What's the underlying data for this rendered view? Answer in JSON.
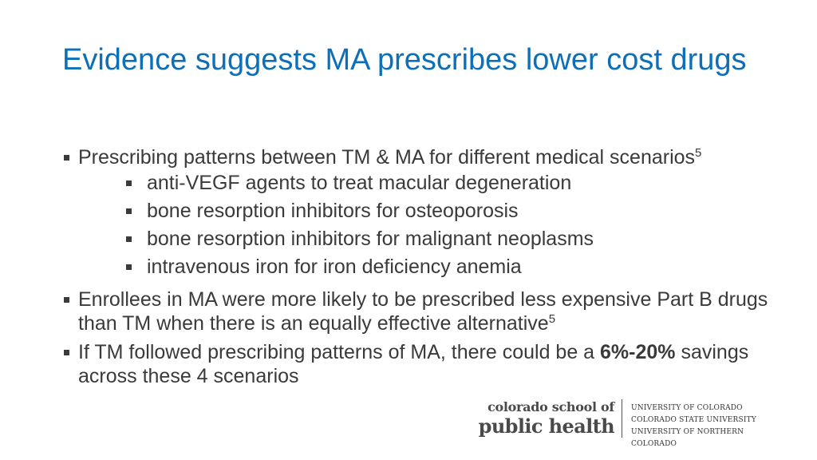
{
  "slide": {
    "title": "Evidence suggests MA prescribes lower cost drugs",
    "bullets": [
      {
        "text": "Prescribing patterns between TM & MA for different medical scenarios",
        "sup": "5",
        "sub": [
          "anti-VEGF agents to treat macular degeneration",
          "bone resorption inhibitors for osteoporosis",
          "bone resorption inhibitors for malignant neoplasms",
          "intravenous iron for iron deficiency anemia"
        ]
      },
      {
        "text": "Enrollees in MA were more likely to be prescribed less expensive Part B drugs than TM when there is an equally effective alternative",
        "sup": "5"
      },
      {
        "text_before": "If TM followed prescribing patterns of MA, there could be a ",
        "bold": "6%-20%",
        "text_after": " savings across these 4 scenarios"
      }
    ]
  },
  "logo": {
    "line1": "colorado school of",
    "line2": "public health",
    "universities": [
      "UNIVERSITY OF COLORADO",
      "COLORADO STATE UNIVERSITY",
      "UNIVERSITY OF NORTHERN COLORADO"
    ]
  }
}
